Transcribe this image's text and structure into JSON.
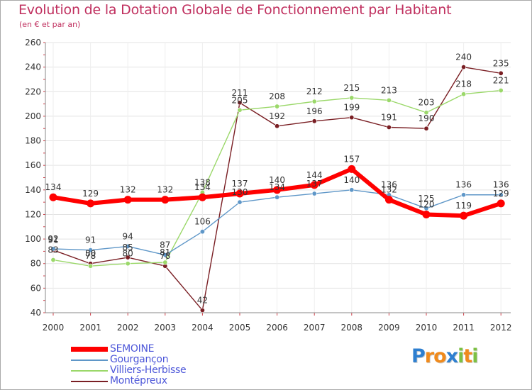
{
  "chart_data": {
    "type": "line",
    "title": "Evolution de la Dotation Globale de Fonctionnement par Habitant",
    "subtitle": "(en € et par an)",
    "xlabel": "",
    "ylabel": "",
    "ylim": [
      40,
      260
    ],
    "yticks": [
      40,
      60,
      80,
      100,
      120,
      140,
      160,
      180,
      200,
      220,
      240,
      260
    ],
    "grid": true,
    "categories": [
      "2000",
      "2001",
      "2002",
      "2003",
      "2004",
      "2005",
      "2006",
      "2007",
      "2008",
      "2009",
      "2010",
      "2011",
      "2012"
    ],
    "series": [
      {
        "name": "SEMOINE",
        "color": "#ff0000",
        "values": [
          134,
          129,
          132,
          132,
          134,
          137,
          140,
          144,
          157,
          132,
          120,
          119,
          129
        ]
      },
      {
        "name": "Gourgançon",
        "color": "#5f97c8",
        "values": [
          92,
          91,
          94,
          87,
          106,
          130,
          134,
          137,
          140,
          136,
          125,
          136,
          136
        ]
      },
      {
        "name": "Villiers-Herbisse",
        "color": "#9bd86a",
        "values": [
          83,
          78,
          80,
          81,
          138,
          205,
          208,
          212,
          215,
          213,
          203,
          218,
          221
        ]
      },
      {
        "name": "Montépreux",
        "color": "#7a1f24",
        "values": [
          91,
          80,
          85,
          78,
          42,
          211,
          192,
          196,
          199,
          191,
          190,
          240,
          235
        ]
      }
    ]
  },
  "logo": {
    "letters": [
      "P",
      "r",
      "o",
      "x",
      "i",
      "t",
      "i"
    ],
    "colors": [
      "#2e7fd0",
      "#f08a1c",
      "#f08a1c",
      "#2e7fd0",
      "#7cc043",
      "#f08a1c",
      "#7cc043"
    ]
  }
}
